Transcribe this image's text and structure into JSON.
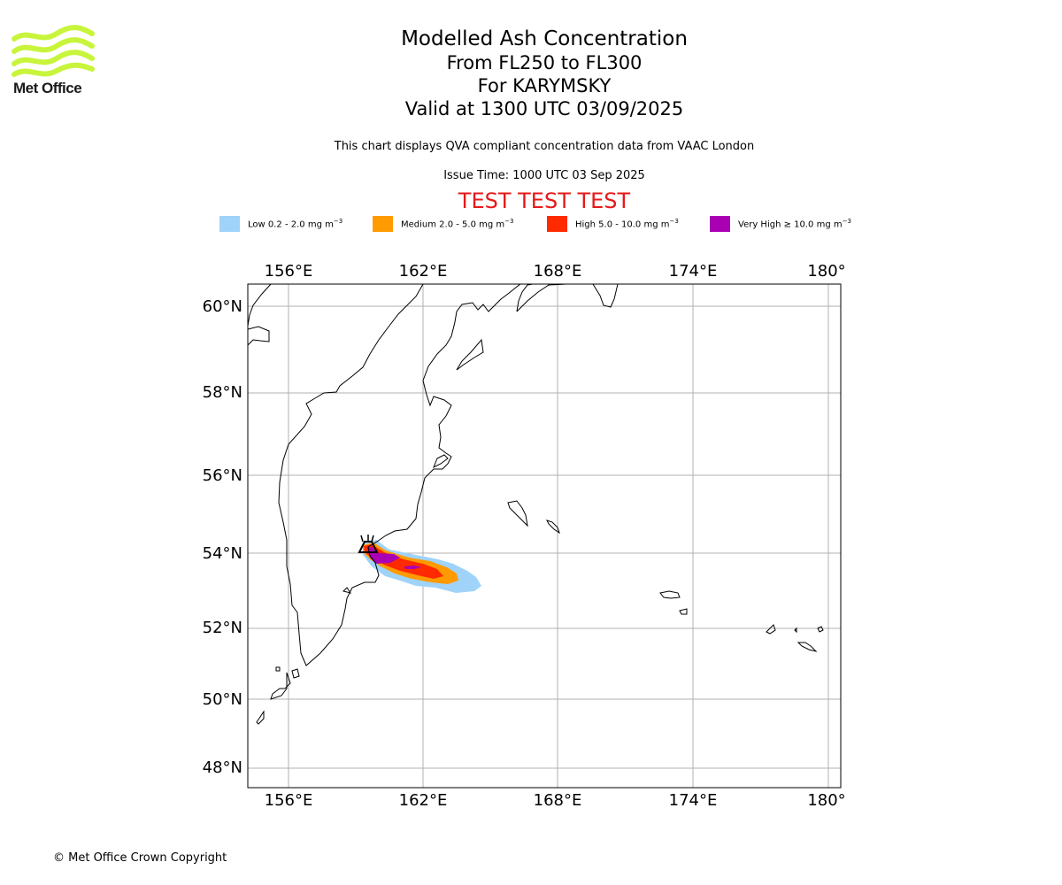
{
  "logo": {
    "text": "Met Office",
    "color": "#c8f53c"
  },
  "header": {
    "title": "Modelled Ash Concentration",
    "levels": "From FL250 to FL300",
    "volcano": "For KARYMSKY",
    "valid": "Valid at 1300 UTC 03/09/2025",
    "description": "This chart displays QVA compliant concentration data from VAAC London",
    "issue_time": "Issue Time: 1000 UTC 03 Sep 2025",
    "test_banner": "TEST TEST TEST",
    "test_color": "#e6191a"
  },
  "legend": [
    {
      "name": "Low",
      "text": "Low 0.2 - 2.0 mg m",
      "unit_exp": "−3",
      "color": "#9fd3fa"
    },
    {
      "name": "Medium",
      "text": "Medium 2.0 - 5.0 mg m",
      "unit_exp": "−3",
      "color": "#ff9a00"
    },
    {
      "name": "High",
      "text": "High 5.0 - 10.0 mg m",
      "unit_exp": "−3",
      "color": "#ff2a00"
    },
    {
      "name": "Very High",
      "text": "Very High  ≥  10.0 mg m",
      "unit_exp": "−3",
      "color": "#aa00b4"
    }
  ],
  "map": {
    "lon_labels": [
      "156°E",
      "162°E",
      "168°E",
      "174°E",
      "180°"
    ],
    "lat_labels": [
      "60°N",
      "58°N",
      "56°N",
      "54°N",
      "52°N",
      "50°N",
      "48°N"
    ],
    "volcano_icon": "volcano-icon"
  },
  "footer": {
    "copyright": "© Met Office Crown Copyright"
  }
}
